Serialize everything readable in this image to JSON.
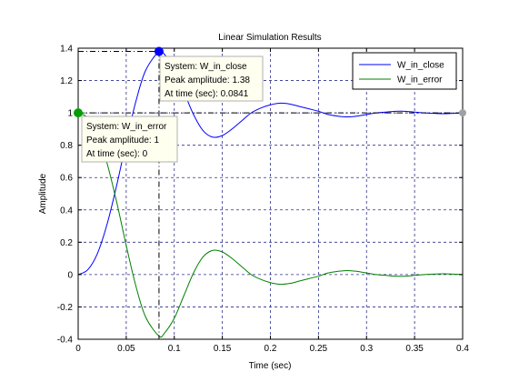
{
  "chart_data": {
    "type": "line",
    "title": "Linear Simulation Results",
    "xlabel": "Time (sec)",
    "ylabel": "Amplitude",
    "xlim": [
      0,
      0.4
    ],
    "ylim": [
      -0.4,
      1.4
    ],
    "xticks": [
      0,
      0.05,
      0.1,
      0.15,
      0.2,
      0.25,
      0.3,
      0.35,
      0.4
    ],
    "xtick_labels": [
      "0",
      "0.05",
      "0.1",
      "0.15",
      "0.2",
      "0.25",
      "0.3",
      "0.35",
      "0.4"
    ],
    "yticks": [
      -0.4,
      -0.2,
      0,
      0.2,
      0.4,
      0.6,
      0.8,
      1,
      1.2,
      1.4
    ],
    "ytick_labels": [
      "-0.4",
      "-0.2",
      "0",
      "0.2",
      "0.4",
      "0.6",
      "0.8",
      "1",
      "1.2",
      "1.4"
    ],
    "grid": true,
    "legend_position": "top-right",
    "reference_value": 1,
    "series": [
      {
        "name": "W_in_close",
        "color": "#0000ff",
        "x": [
          0,
          0.01,
          0.02,
          0.03,
          0.04,
          0.05,
          0.06,
          0.07,
          0.0841,
          0.09,
          0.1,
          0.11,
          0.12,
          0.13,
          0.14,
          0.15,
          0.16,
          0.17,
          0.18,
          0.19,
          0.2,
          0.21,
          0.22,
          0.23,
          0.24,
          0.25,
          0.26,
          0.27,
          0.28,
          0.29,
          0.3,
          0.31,
          0.32,
          0.33,
          0.34,
          0.35,
          0.36,
          0.37,
          0.38,
          0.39,
          0.4
        ],
        "y": [
          0,
          0.03,
          0.13,
          0.31,
          0.55,
          0.82,
          1.07,
          1.26,
          1.38,
          1.36,
          1.27,
          1.13,
          0.99,
          0.89,
          0.85,
          0.86,
          0.9,
          0.95,
          1,
          1.03,
          1.05,
          1.06,
          1.055,
          1.04,
          1.025,
          1.01,
          0.99,
          0.98,
          0.975,
          0.98,
          0.99,
          1,
          1.005,
          1.01,
          1.01,
          1.005,
          1,
          0.997,
          0.995,
          0.997,
          1
        ]
      },
      {
        "name": "W_in_error",
        "color": "#008000",
        "x": [
          0,
          0.01,
          0.02,
          0.03,
          0.04,
          0.05,
          0.06,
          0.07,
          0.0841,
          0.09,
          0.1,
          0.11,
          0.12,
          0.13,
          0.14,
          0.15,
          0.16,
          0.17,
          0.18,
          0.19,
          0.2,
          0.21,
          0.22,
          0.23,
          0.24,
          0.25,
          0.26,
          0.27,
          0.28,
          0.29,
          0.3,
          0.31,
          0.32,
          0.33,
          0.34,
          0.35,
          0.36,
          0.37,
          0.38,
          0.39,
          0.4
        ],
        "y": [
          1,
          0.97,
          0.87,
          0.69,
          0.45,
          0.18,
          -0.07,
          -0.26,
          -0.38,
          -0.36,
          -0.27,
          -0.13,
          0.01,
          0.11,
          0.15,
          0.14,
          0.1,
          0.05,
          0,
          -0.03,
          -0.05,
          -0.06,
          -0.055,
          -0.04,
          -0.025,
          -0.01,
          0.01,
          0.02,
          0.025,
          0.02,
          0.01,
          0,
          -0.005,
          -0.01,
          -0.01,
          -0.005,
          0,
          0.003,
          0.005,
          0.003,
          0
        ]
      }
    ],
    "datatips": [
      {
        "series": "W_in_close",
        "x": 0.0841,
        "y": 1.38,
        "color": "#0000ff",
        "lines": [
          "System: W_in_close",
          "Peak amplitude: 1.38",
          "At time (sec): 0.0841"
        ]
      },
      {
        "series": "W_in_error",
        "x": 0,
        "y": 1,
        "color": "#00a000",
        "lines": [
          "System: W_in_error",
          "Peak amplitude: 1",
          "At time (sec): 0"
        ]
      }
    ],
    "steady_state_marker": {
      "x": 0.4,
      "y": 1,
      "color": "#a0a0a8"
    }
  }
}
